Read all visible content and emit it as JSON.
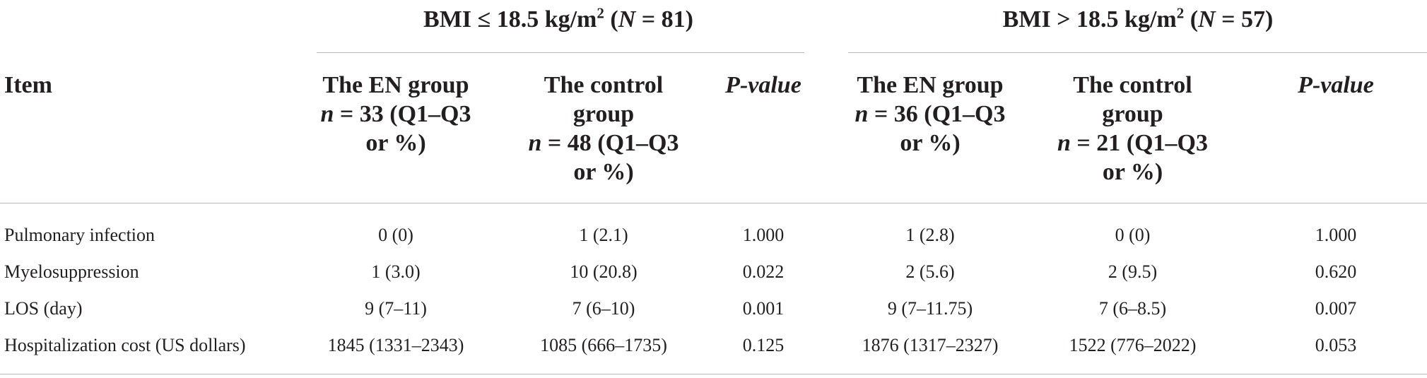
{
  "groups": [
    {
      "title_a": "BMI ≤ 18.5 kg/m",
      "sup": "2",
      "title_b": " (",
      "n_sym": "N",
      "title_c": " = 81)"
    },
    {
      "title_a": "BMI > 18.5 kg/m",
      "sup": "2",
      "title_b": " (",
      "n_sym": "N",
      "title_c": " = 57)"
    }
  ],
  "header": {
    "item": "Item",
    "pvalue": "P-value",
    "en_group_1": {
      "line1": "The EN group",
      "n_sym": "n",
      "n_text": " = 33 (Q1–Q3",
      "line3": "or %)"
    },
    "control_group_1": {
      "line1": "The control",
      "line2": "group",
      "n_sym": "n",
      "n_text": " = 48 (Q1–Q3",
      "line4": "or %)"
    },
    "en_group_2": {
      "line1": "The EN group",
      "n_sym": "n",
      "n_text": " = 36 (Q1–Q3",
      "line3": "or %)"
    },
    "control_group_2": {
      "line1": "The control",
      "line2": "group",
      "n_sym": "n",
      "n_text": " = 21 (Q1–Q3",
      "line4": "or %)"
    }
  },
  "rows": [
    {
      "label": "Pulmonary infection",
      "cells": [
        "0 (0)",
        "1 (2.1)",
        "1.000",
        "1 (2.8)",
        "0 (0)",
        "1.000"
      ]
    },
    {
      "label": "Myelosuppression",
      "cells": [
        "1 (3.0)",
        "10 (20.8)",
        "0.022",
        "2 (5.6)",
        "2 (9.5)",
        "0.620"
      ]
    },
    {
      "label": "LOS (day)",
      "cells": [
        "9 (7–11)",
        "7 (6–10)",
        "0.001",
        "9 (7–11.75)",
        "7 (6–8.5)",
        "0.007"
      ]
    },
    {
      "label": "Hospitalization cost (US dollars)",
      "cells": [
        "1845 (1331–2343)",
        "1085 (666–1735)",
        "0.125",
        "1876 (1317–2327)",
        "1522 (776–2022)",
        "0.053"
      ]
    }
  ]
}
